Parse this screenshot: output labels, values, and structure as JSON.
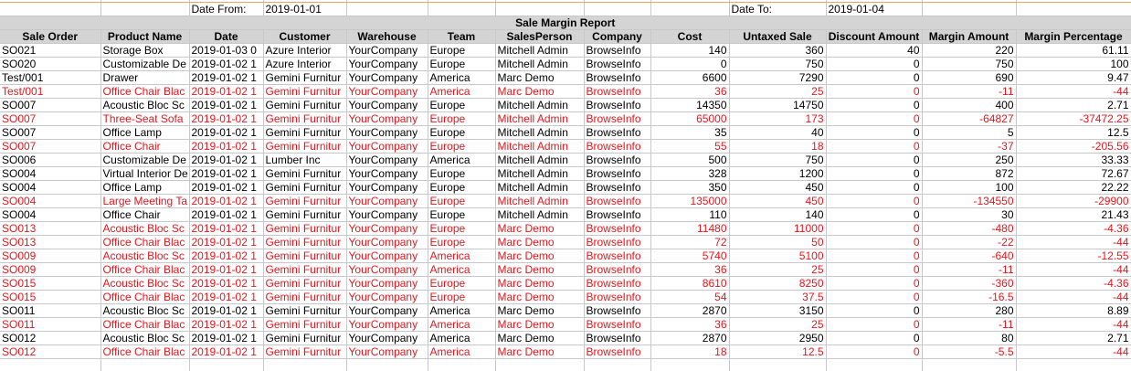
{
  "accent_negative_color": "#e8151b",
  "header_bg_color": "#d4d4d4",
  "filters": {
    "date_from_label": "Date From:",
    "date_from_value": "2019-01-01",
    "date_to_label": "Date To:",
    "date_to_value": "2019-01-04"
  },
  "report_title": "Sale Margin Report",
  "columns": [
    "Sale Order",
    "Product Name",
    "Date",
    "Customer",
    "Warehouse",
    "Team",
    "SalesPerson",
    "Company",
    "Cost",
    "Untaxed Sale",
    "Discount Amount",
    "Margin Amount",
    "Margin Percentage"
  ],
  "rows": [
    {
      "neg": false,
      "c": [
        "SO021",
        "Storage Box",
        "2019-01-03 0",
        "Azure Interior",
        "YourCompany",
        "Europe",
        "Mitchell Admin",
        "BrowseInfo",
        "140",
        "360",
        "40",
        "220",
        "61.11"
      ]
    },
    {
      "neg": false,
      "c": [
        "SO020",
        "Customizable De",
        "2019-01-02 1",
        "Azure Interior",
        "YourCompany",
        "Europe",
        "Mitchell Admin",
        "BrowseInfo",
        "0",
        "750",
        "0",
        "750",
        "100"
      ]
    },
    {
      "neg": false,
      "c": [
        "Test/001",
        "Drawer",
        "2019-01-02 1",
        "Gemini Furnitur",
        "YourCompany",
        "America",
        "Marc Demo",
        "BrowseInfo",
        "6600",
        "7290",
        "0",
        "690",
        "9.47"
      ]
    },
    {
      "neg": true,
      "c": [
        "Test/001",
        "Office Chair Blac",
        "2019-01-02 1",
        "Gemini Furnitur",
        "YourCompany",
        "America",
        "Marc Demo",
        "BrowseInfo",
        "36",
        "25",
        "0",
        "-11",
        "-44"
      ]
    },
    {
      "neg": false,
      "c": [
        "SO007",
        "Acoustic Bloc Sc",
        "2019-01-02 1",
        "Gemini Furnitur",
        "YourCompany",
        "Europe",
        "Mitchell Admin",
        "BrowseInfo",
        "14350",
        "14750",
        "0",
        "400",
        "2.71"
      ]
    },
    {
      "neg": true,
      "c": [
        "SO007",
        "Three-Seat Sofa",
        "2019-01-02 1",
        "Gemini Furnitur",
        "YourCompany",
        "Europe",
        "Mitchell Admin",
        "BrowseInfo",
        "65000",
        "173",
        "0",
        "-64827",
        "-37472.25"
      ]
    },
    {
      "neg": false,
      "c": [
        "SO007",
        "Office Lamp",
        "2019-01-02 1",
        "Gemini Furnitur",
        "YourCompany",
        "Europe",
        "Mitchell Admin",
        "BrowseInfo",
        "35",
        "40",
        "0",
        "5",
        "12.5"
      ]
    },
    {
      "neg": true,
      "c": [
        "SO007",
        "Office Chair",
        "2019-01-02 1",
        "Gemini Furnitur",
        "YourCompany",
        "Europe",
        "Mitchell Admin",
        "BrowseInfo",
        "55",
        "18",
        "0",
        "-37",
        "-205.56"
      ]
    },
    {
      "neg": false,
      "c": [
        "SO006",
        "Customizable De",
        "2019-01-02 1",
        "Lumber Inc",
        "YourCompany",
        "America",
        "Mitchell Admin",
        "BrowseInfo",
        "500",
        "750",
        "0",
        "250",
        "33.33"
      ]
    },
    {
      "neg": false,
      "c": [
        "SO004",
        "Virtual Interior De",
        "2019-01-02 1",
        "Gemini Furnitur",
        "YourCompany",
        "Europe",
        "Mitchell Admin",
        "BrowseInfo",
        "328",
        "1200",
        "0",
        "872",
        "72.67"
      ]
    },
    {
      "neg": false,
      "c": [
        "SO004",
        "Office Lamp",
        "2019-01-02 1",
        "Gemini Furnitur",
        "YourCompany",
        "Europe",
        "Mitchell Admin",
        "BrowseInfo",
        "350",
        "450",
        "0",
        "100",
        "22.22"
      ]
    },
    {
      "neg": true,
      "c": [
        "SO004",
        "Large Meeting Ta",
        "2019-01-02 1",
        "Gemini Furnitur",
        "YourCompany",
        "Europe",
        "Mitchell Admin",
        "BrowseInfo",
        "135000",
        "450",
        "0",
        "-134550",
        "-29900"
      ]
    },
    {
      "neg": false,
      "c": [
        "SO004",
        "Office Chair",
        "2019-01-02 1",
        "Gemini Furnitur",
        "YourCompany",
        "Europe",
        "Mitchell Admin",
        "BrowseInfo",
        "110",
        "140",
        "0",
        "30",
        "21.43"
      ]
    },
    {
      "neg": true,
      "c": [
        "SO013",
        "Acoustic Bloc Sc",
        "2019-01-02 1",
        "Gemini Furnitur",
        "YourCompany",
        "Europe",
        "Marc Demo",
        "BrowseInfo",
        "11480",
        "11000",
        "0",
        "-480",
        "-4.36"
      ]
    },
    {
      "neg": true,
      "c": [
        "SO013",
        "Office Chair Blac",
        "2019-01-02 1",
        "Gemini Furnitur",
        "YourCompany",
        "Europe",
        "Marc Demo",
        "BrowseInfo",
        "72",
        "50",
        "0",
        "-22",
        "-44"
      ]
    },
    {
      "neg": true,
      "c": [
        "SO009",
        "Acoustic Bloc Sc",
        "2019-01-02 1",
        "Gemini Furnitur",
        "YourCompany",
        "America",
        "Marc Demo",
        "BrowseInfo",
        "5740",
        "5100",
        "0",
        "-640",
        "-12.55"
      ]
    },
    {
      "neg": true,
      "c": [
        "SO009",
        "Office Chair Blac",
        "2019-01-02 1",
        "Gemini Furnitur",
        "YourCompany",
        "America",
        "Marc Demo",
        "BrowseInfo",
        "36",
        "25",
        "0",
        "-11",
        "-44"
      ]
    },
    {
      "neg": true,
      "c": [
        "SO015",
        "Acoustic Bloc Sc",
        "2019-01-02 1",
        "Gemini Furnitur",
        "YourCompany",
        "Europe",
        "Marc Demo",
        "BrowseInfo",
        "8610",
        "8250",
        "0",
        "-360",
        "-4.36"
      ]
    },
    {
      "neg": true,
      "c": [
        "SO015",
        "Office Chair Blac",
        "2019-01-02 1",
        "Gemini Furnitur",
        "YourCompany",
        "Europe",
        "Marc Demo",
        "BrowseInfo",
        "54",
        "37.5",
        "0",
        "-16.5",
        "-44"
      ]
    },
    {
      "neg": false,
      "c": [
        "SO011",
        "Acoustic Bloc Sc",
        "2019-01-02 1",
        "Gemini Furnitur",
        "YourCompany",
        "America",
        "Marc Demo",
        "BrowseInfo",
        "2870",
        "3150",
        "0",
        "280",
        "8.89"
      ]
    },
    {
      "neg": true,
      "c": [
        "SO011",
        "Office Chair Blac",
        "2019-01-02 1",
        "Gemini Furnitur",
        "YourCompany",
        "America",
        "Marc Demo",
        "BrowseInfo",
        "36",
        "25",
        "0",
        "-11",
        "-44"
      ]
    },
    {
      "neg": false,
      "c": [
        "SO012",
        "Acoustic Bloc Sc",
        "2019-01-02 1",
        "Gemini Furnitur",
        "YourCompany",
        "America",
        "Marc Demo",
        "BrowseInfo",
        "2870",
        "2950",
        "0",
        "80",
        "2.71"
      ]
    },
    {
      "neg": true,
      "c": [
        "SO012",
        "Office Chair Blac",
        "2019-01-02 1",
        "Gemini Furnitur",
        "YourCompany",
        "America",
        "Marc Demo",
        "BrowseInfo",
        "18",
        "12.5",
        "0",
        "-5.5",
        "-44"
      ]
    }
  ]
}
